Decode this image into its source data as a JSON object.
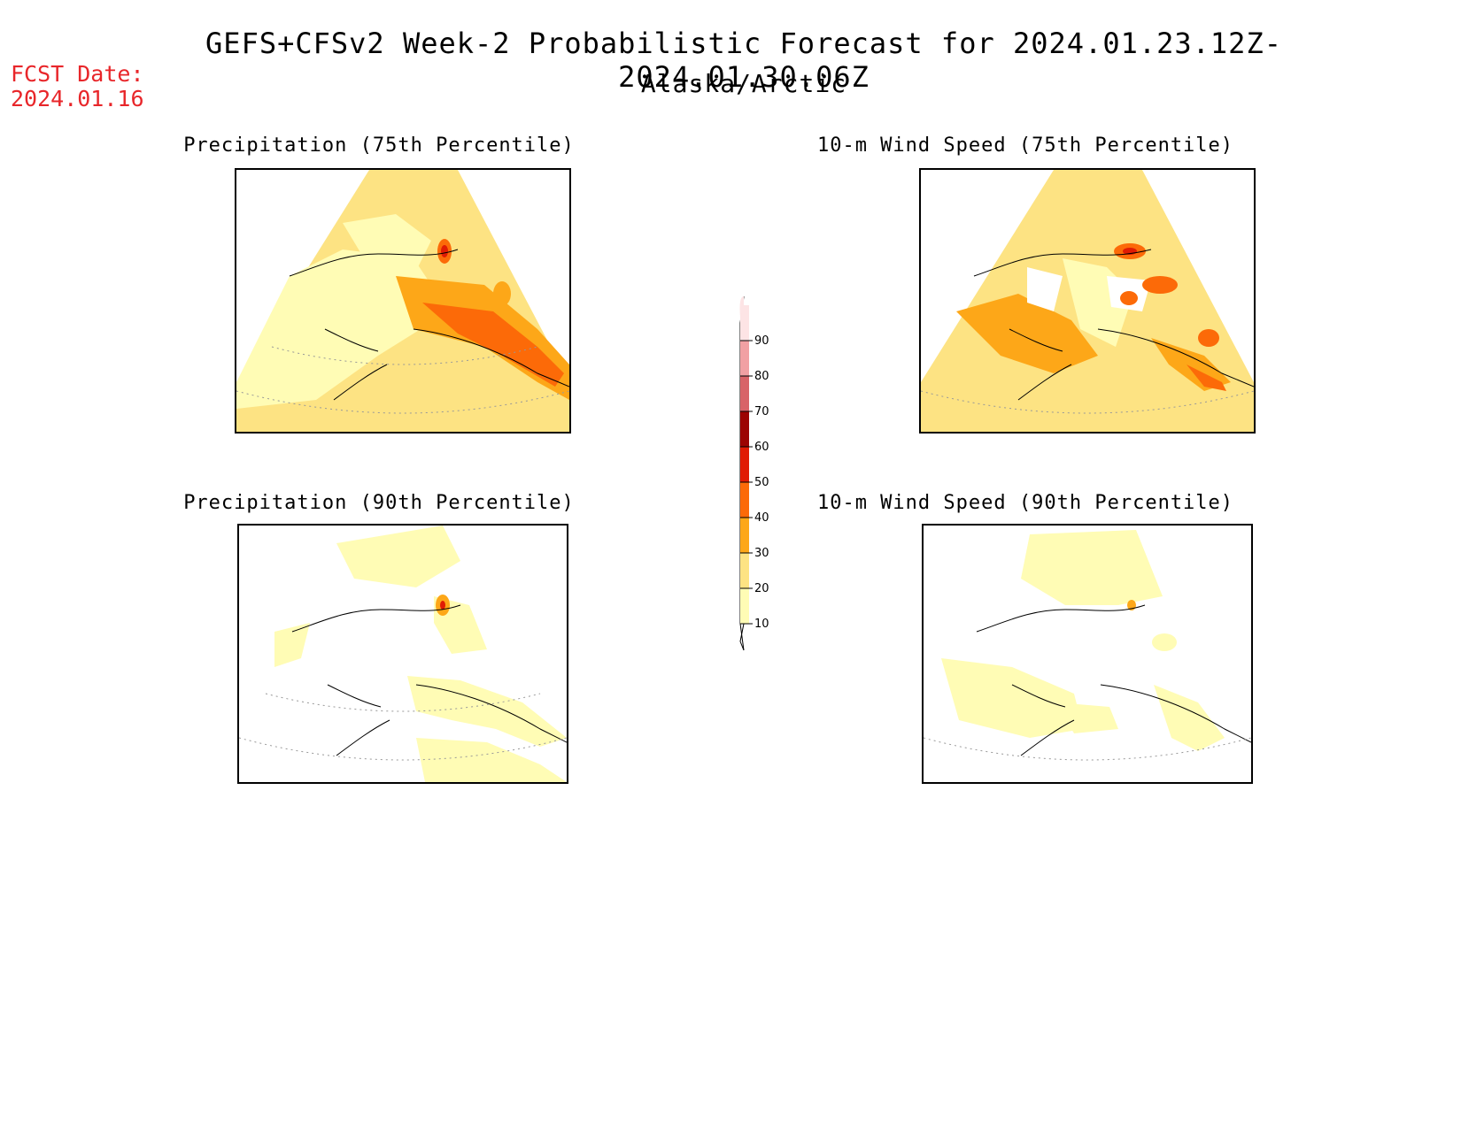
{
  "header": {
    "title": "GEFS+CFSv2 Week-2 Probabilistic Forecast for 2024.01.23.12Z-2024.01.30.06Z",
    "region": "Alaska/Arctic",
    "fcst_date": "FCST Date:\n2024.01.16"
  },
  "panels": [
    {
      "id": "precip75",
      "title": "Precipitation (75th Percentile)"
    },
    {
      "id": "wind75",
      "title": "10-m Wind Speed (75th Percentile)"
    },
    {
      "id": "precip90",
      "title": "Precipitation (90th Percentile)"
    },
    {
      "id": "wind90",
      "title": "10-m Wind Speed (90th Percentile)"
    }
  ],
  "colorbar": {
    "levels": [
      "10",
      "20",
      "30",
      "40",
      "50",
      "60",
      "70",
      "80",
      "90"
    ],
    "colors": [
      "#fffcb5",
      "#fde383",
      "#fda718",
      "#fc6a08",
      "#e01b04",
      "#9c0402",
      "#d86368",
      "#f1a0a3",
      "#fde4e5"
    ]
  }
}
